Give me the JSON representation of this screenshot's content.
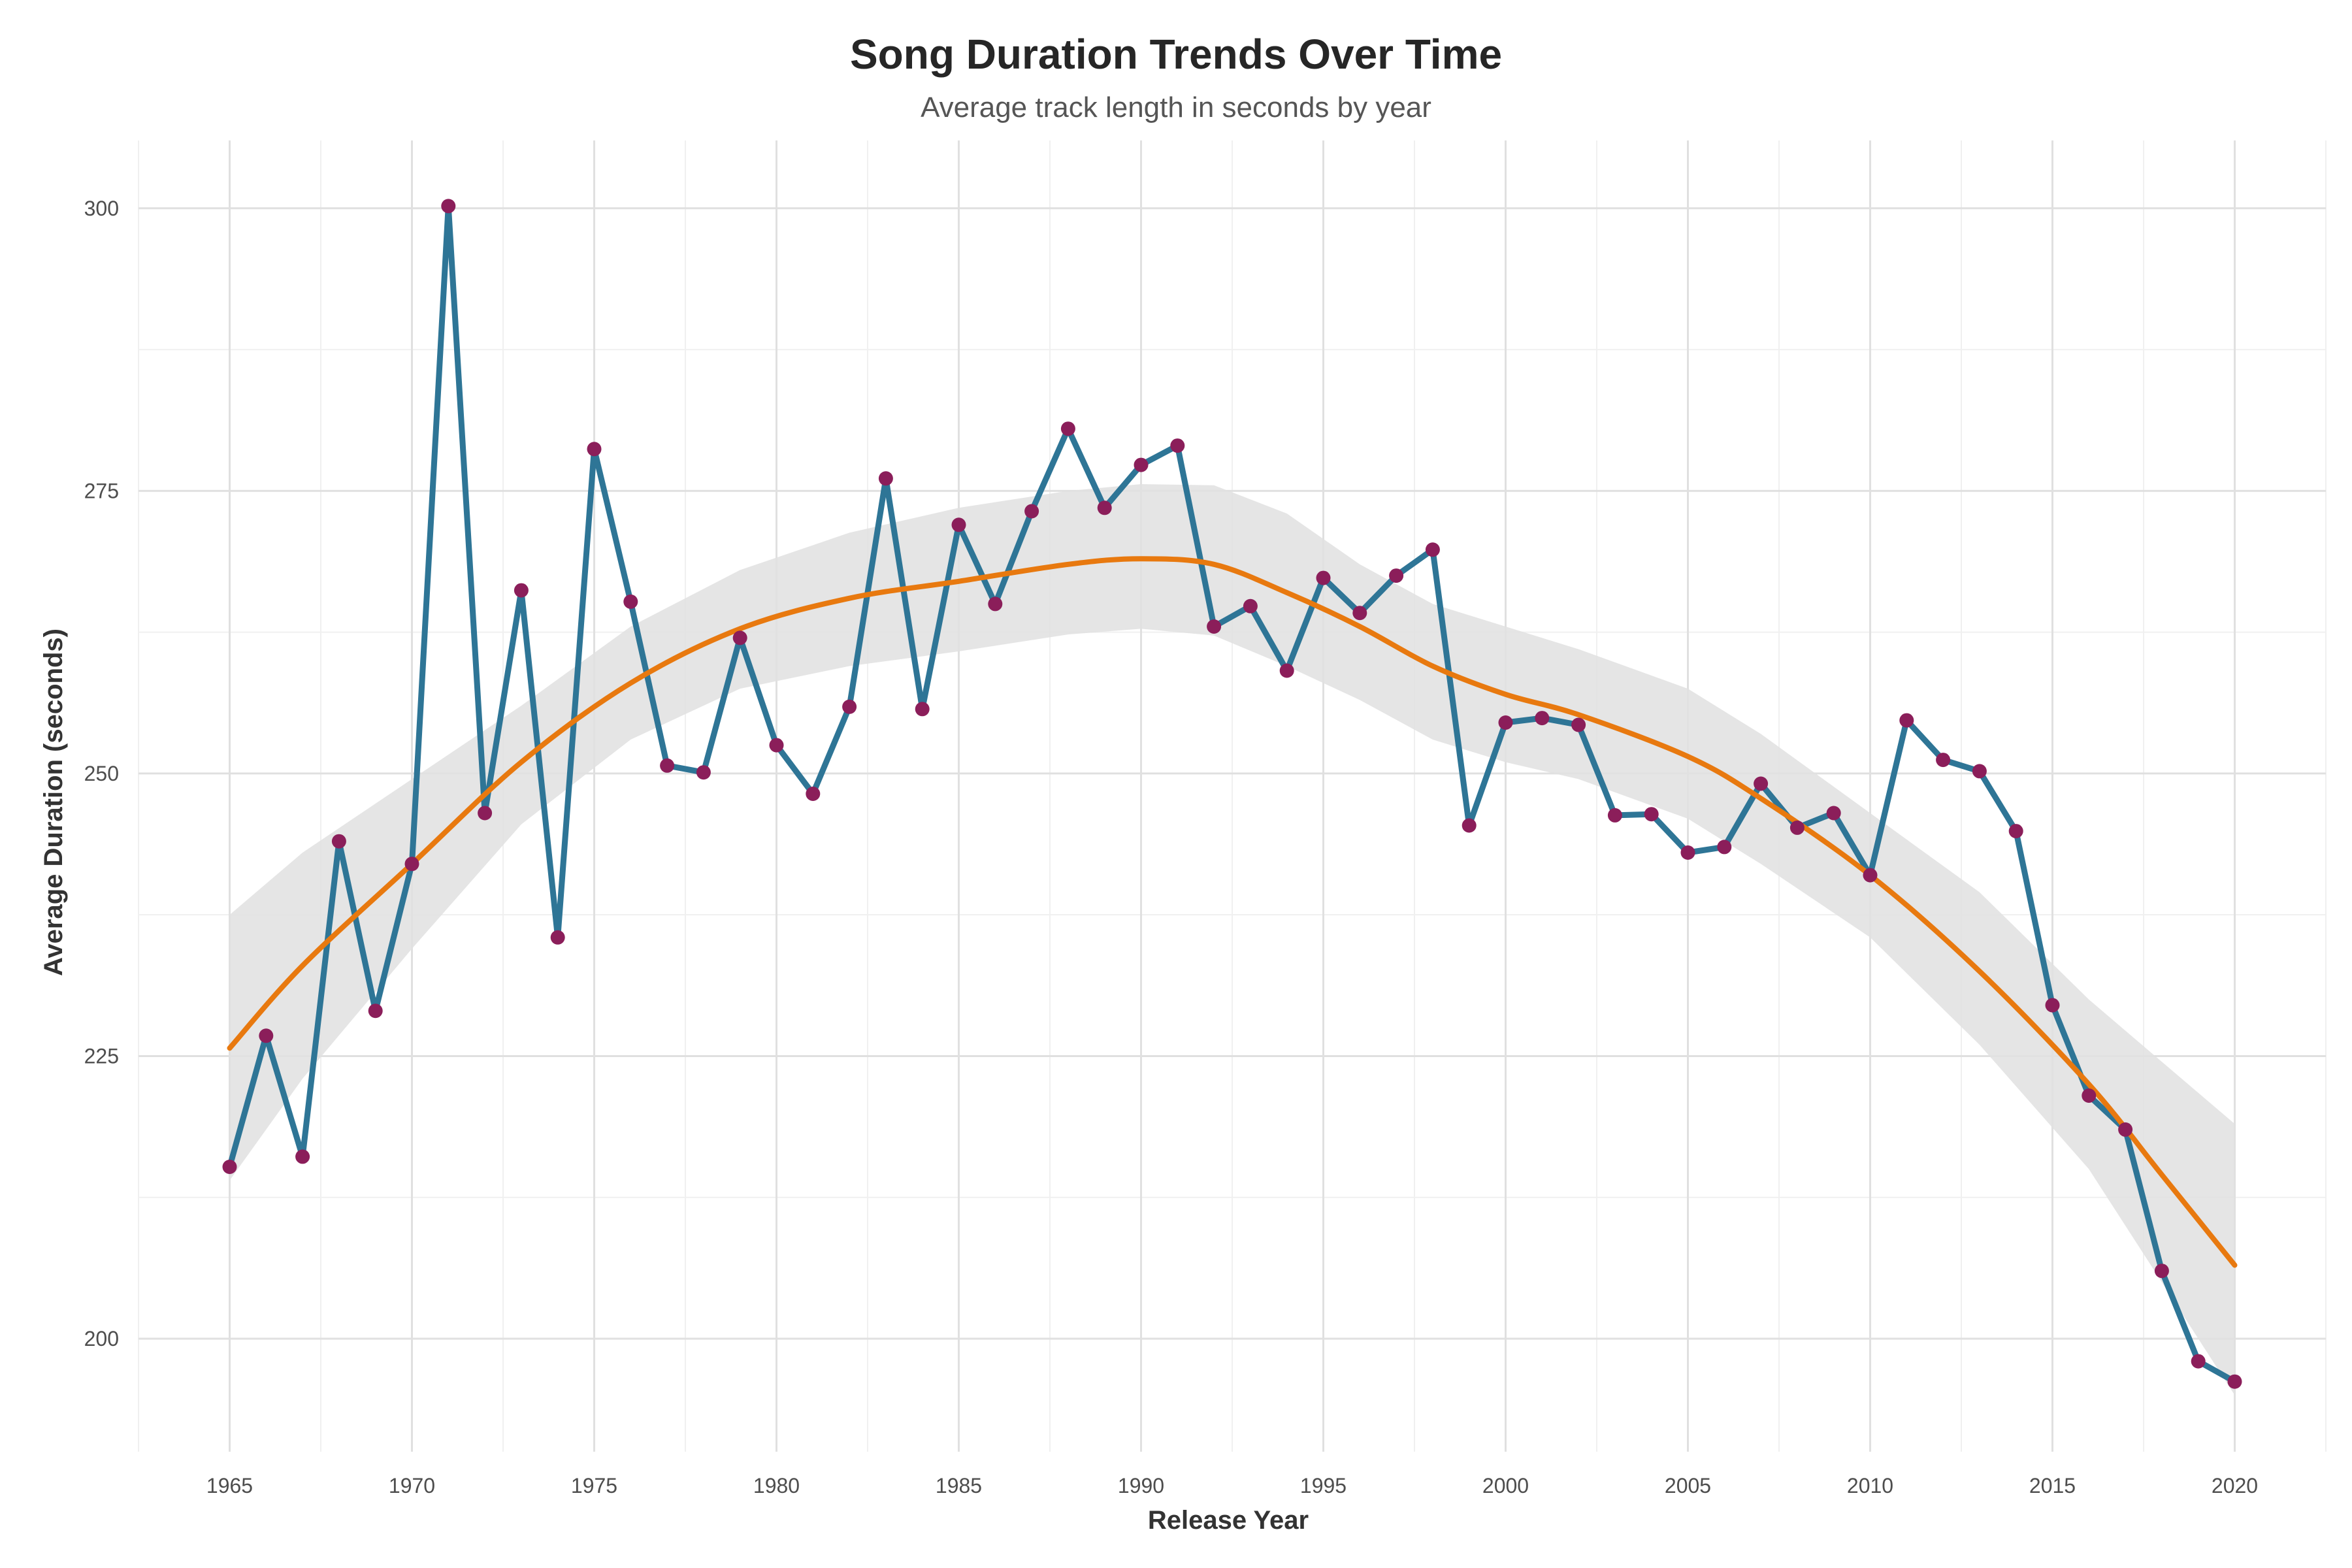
{
  "chart_data": {
    "type": "line",
    "title": "Song Duration Trends Over Time",
    "subtitle": "Average track length in seconds by year",
    "xlabel": "Release Year",
    "ylabel": "Average Duration (seconds)",
    "xlim": [
      1962.5,
      2022.5
    ],
    "ylim": [
      190,
      306
    ],
    "x_ticks": [
      1965,
      1970,
      1975,
      1980,
      1985,
      1990,
      1995,
      2000,
      2005,
      2010,
      2015,
      2020
    ],
    "y_ticks": [
      200,
      225,
      250,
      275,
      300
    ],
    "grid": true,
    "colors": {
      "line": "#2e7596",
      "points": "#8b1e5a",
      "smooth": "#e8790f",
      "band": "#e0e0e0",
      "grid_major": "#e0e0e0",
      "grid_minor": "#f0f0f0"
    },
    "series": [
      {
        "x": [
          1965,
          1966,
          1967,
          1968,
          1969,
          1970,
          1971,
          1972,
          1973,
          1974,
          1975,
          1976,
          1977,
          1978,
          1979,
          1980,
          1981,
          1982,
          1983,
          1984,
          1985,
          1986,
          1987,
          1988,
          1989,
          1990,
          1991,
          1992,
          1993,
          1994,
          1995,
          1996,
          1997,
          1998,
          1999,
          2000,
          2001,
          2002,
          2003,
          2004,
          2005,
          2006,
          2007,
          2008,
          2009,
          2010,
          2011,
          2012,
          2013,
          2014,
          2015,
          2016,
          2017,
          2018,
          2019,
          2020
        ],
        "values": [
          215.2,
          226.8,
          216.1,
          244.0,
          229.0,
          242.0,
          300.2,
          246.5,
          266.2,
          235.5,
          278.7,
          265.2,
          250.7,
          250.1,
          262.0,
          252.5,
          248.2,
          255.9,
          276.1,
          255.7,
          272.0,
          265.0,
          273.2,
          280.5,
          273.5,
          277.3,
          279.0,
          263.0,
          264.8,
          259.1,
          267.3,
          264.2,
          267.5,
          269.8,
          245.4,
          254.5,
          254.9,
          254.3,
          246.3,
          246.4,
          243.0,
          243.5,
          249.1,
          245.2,
          246.5,
          241.0,
          254.7,
          251.2,
          250.2,
          244.9,
          229.5,
          221.5,
          218.5,
          206.0,
          198.0,
          196.2
        ]
      },
      {
        "smooth_x": [
          1965,
          1967,
          1970,
          1973,
          1976,
          1979,
          1982,
          1985,
          1988,
          1990,
          1992,
          1994,
          1996,
          1998,
          2000,
          2002,
          2005,
          2007,
          2010,
          2013,
          2016,
          2018,
          2020
        ],
        "smooth_y": [
          225.7,
          233.0,
          242.0,
          251.0,
          258.0,
          262.8,
          265.5,
          267.0,
          268.5,
          269.0,
          268.5,
          266.0,
          263.0,
          259.5,
          257.0,
          255.2,
          251.5,
          247.8,
          241.0,
          232.5,
          222.5,
          214.5,
          206.5
        ],
        "band_upper": [
          237.5,
          243.0,
          249.5,
          256.0,
          263.0,
          268.0,
          271.3,
          273.5,
          275.0,
          275.6,
          275.5,
          273.0,
          268.5,
          265.0,
          263.0,
          261.0,
          257.5,
          253.5,
          246.5,
          239.5,
          230.0,
          224.5,
          219.0
        ],
        "band_lower": [
          214.0,
          223.0,
          234.5,
          245.5,
          253.0,
          257.5,
          259.5,
          260.8,
          262.3,
          262.8,
          262.2,
          259.5,
          256.5,
          253.0,
          251.0,
          249.5,
          246.0,
          242.0,
          235.5,
          226.0,
          215.0,
          205.0,
          195.0
        ]
      }
    ]
  }
}
